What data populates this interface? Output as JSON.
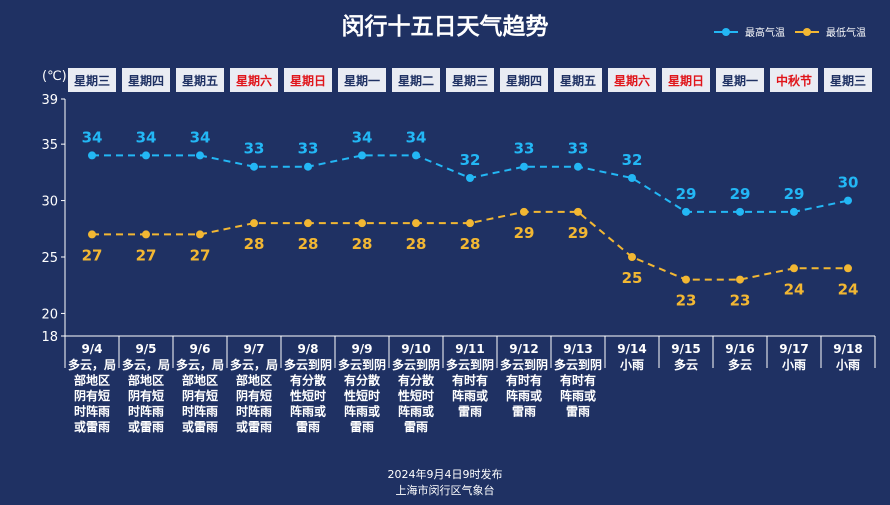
{
  "page": {
    "title": "闵行十五日天气趋势",
    "footer_line1": "2024年9月4日9时发布",
    "footer_line2": "上海市闵行区气象台"
  },
  "colors": {
    "background": "#1f3163",
    "high": "#23b7f5",
    "low": "#f2b733",
    "weekday_box": "#e9ecf3",
    "weekday_normal": "#1f3163",
    "weekday_holiday": "#e0151b"
  },
  "chart_data": {
    "type": "line",
    "title": "闵行十五日天气趋势",
    "ylabel": "(℃)",
    "ylim": [
      18,
      39
    ],
    "yticks": [
      18,
      20,
      25,
      30,
      35,
      39
    ],
    "legend_position": "top-right",
    "categories": [
      "9/4",
      "9/5",
      "9/6",
      "9/7",
      "9/8",
      "9/9",
      "9/10",
      "9/11",
      "9/12",
      "9/13",
      "9/14",
      "9/15",
      "9/16",
      "9/17",
      "9/18"
    ],
    "weekdays": [
      {
        "label": "星期三",
        "holiday": false
      },
      {
        "label": "星期四",
        "holiday": false
      },
      {
        "label": "星期五",
        "holiday": false
      },
      {
        "label": "星期六",
        "holiday": true
      },
      {
        "label": "星期日",
        "holiday": true
      },
      {
        "label": "星期一",
        "holiday": false
      },
      {
        "label": "星期二",
        "holiday": false
      },
      {
        "label": "星期三",
        "holiday": false
      },
      {
        "label": "星期四",
        "holiday": false
      },
      {
        "label": "星期五",
        "holiday": false
      },
      {
        "label": "星期六",
        "holiday": true
      },
      {
        "label": "星期日",
        "holiday": true
      },
      {
        "label": "星期一",
        "holiday": false
      },
      {
        "label": "中秋节",
        "holiday": true
      },
      {
        "label": "星期三",
        "holiday": false
      }
    ],
    "weather": [
      [
        "多云，局",
        "部地区",
        "阴有短",
        "时阵雨",
        "或雷雨"
      ],
      [
        "多云，局",
        "部地区",
        "阴有短",
        "时阵雨",
        "或雷雨"
      ],
      [
        "多云，局",
        "部地区",
        "阴有短",
        "时阵雨",
        "或雷雨"
      ],
      [
        "多云，局",
        "部地区",
        "阴有短",
        "时阵雨",
        "或雷雨"
      ],
      [
        "多云到阴",
        "有分散",
        "性短时",
        "阵雨或",
        "雷雨"
      ],
      [
        "多云到阴",
        "有分散",
        "性短时",
        "阵雨或",
        "雷雨"
      ],
      [
        "多云到阴",
        "有分散",
        "性短时",
        "阵雨或",
        "雷雨"
      ],
      [
        "多云到阴",
        "有时有",
        "阵雨或",
        "雷雨"
      ],
      [
        "多云到阴",
        "有时有",
        "阵雨或",
        "雷雨"
      ],
      [
        "多云到阴",
        "有时有",
        "阵雨或",
        "雷雨"
      ],
      [
        "小雨"
      ],
      [
        "多云"
      ],
      [
        "多云"
      ],
      [
        "小雨"
      ],
      [
        "小雨"
      ]
    ],
    "series": [
      {
        "name": "最高气温",
        "key": "high",
        "values": [
          34,
          34,
          34,
          33,
          33,
          34,
          34,
          32,
          33,
          33,
          32,
          29,
          29,
          29,
          30
        ]
      },
      {
        "name": "最低气温",
        "key": "low",
        "values": [
          27,
          27,
          27,
          28,
          28,
          28,
          28,
          28,
          29,
          29,
          25,
          23,
          23,
          24,
          24
        ]
      }
    ]
  }
}
